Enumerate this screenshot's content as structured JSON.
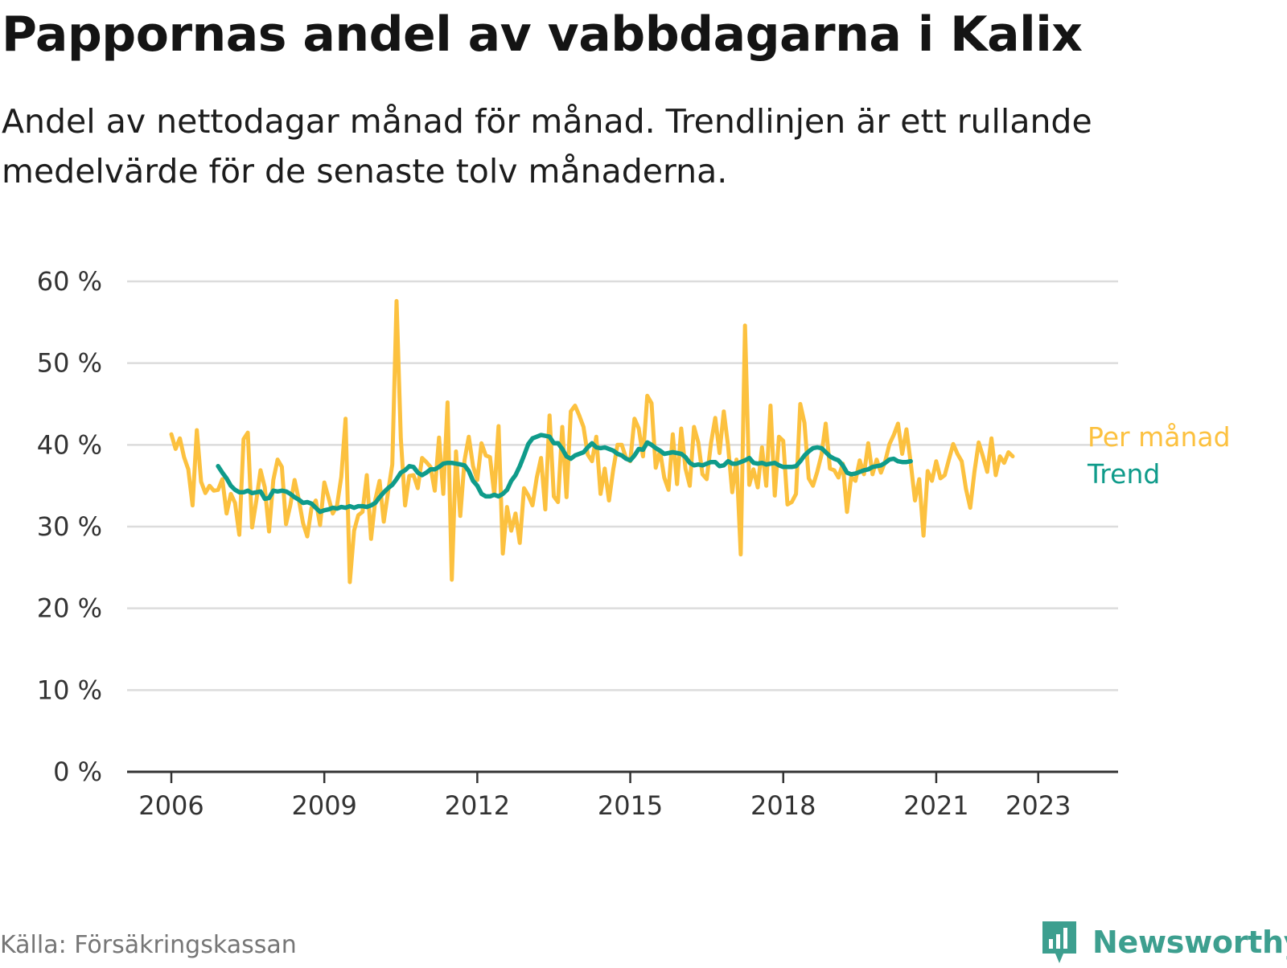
{
  "title": "Pappornas andel av vabbdagarna i Kalix",
  "subtitle": "Andel av nettodagar månad för månad. Trendlinjen är ett rullande medelvärde för de senaste tolv månaderna.",
  "source": "Källa: Försäkringskassan",
  "brand": "Newsworthy",
  "colors": {
    "monthly": "#fcc13f",
    "trend": "#0f9b8a",
    "grid": "#dcdcdc",
    "axis": "#333333",
    "brand": "#3d9f8f"
  },
  "chart_data": {
    "type": "line",
    "title": "Pappornas andel av vabbdagarna i Kalix",
    "xlabel": "",
    "ylabel": "",
    "ylim": [
      0,
      60
    ],
    "yticks": [
      0,
      10,
      20,
      30,
      40,
      50,
      60
    ],
    "ytick_labels": [
      "0 %",
      "10 %",
      "20 %",
      "30 %",
      "40 %",
      "50 %",
      "60 %"
    ],
    "xlim": [
      2006,
      2023.58
    ],
    "xticks": [
      2006,
      2009,
      2012,
      2015,
      2018,
      2021,
      2023
    ],
    "xtick_labels": [
      "2006",
      "2009",
      "2012",
      "2015",
      "2018",
      "2021",
      "2023"
    ],
    "grid": true,
    "legend": "end-of-line labels (right)",
    "series": [
      {
        "name": "Per månad",
        "color": "#fcc13f",
        "x_start": 2006.0,
        "x_step": 0.08333,
        "values": [
          41.3,
          39.5,
          40.8,
          38.5,
          37.0,
          32.6,
          41.8,
          35.5,
          34.1,
          35.0,
          34.4,
          34.5,
          35.8,
          31.6,
          34.0,
          32.9,
          29.0,
          40.7,
          41.5,
          29.9,
          33.2,
          36.9,
          34.8,
          29.4,
          35.7,
          38.2,
          37.3,
          30.3,
          32.6,
          35.7,
          33.3,
          30.4,
          28.8,
          32.3,
          33.2,
          30.2,
          35.4,
          33.5,
          31.6,
          32.6,
          36.1,
          43.2,
          23.2,
          29.5,
          31.4,
          31.8,
          36.3,
          28.5,
          33.3,
          35.6,
          30.6,
          34.2,
          37.6,
          57.6,
          40.8,
          32.6,
          36.2,
          36.3,
          34.7,
          38.4,
          37.9,
          37.3,
          34.4,
          40.9,
          34.0,
          45.2,
          23.5,
          39.2,
          31.3,
          38.1,
          41.0,
          37.4,
          35.7,
          40.2,
          38.7,
          38.5,
          33.9,
          42.3,
          26.7,
          32.4,
          29.5,
          31.6,
          28.0,
          34.7,
          33.8,
          32.6,
          36.0,
          38.4,
          32.1,
          43.6,
          33.7,
          33.0,
          42.2,
          33.6,
          44.1,
          44.8,
          43.6,
          42.2,
          38.8,
          38.0,
          41.0,
          34.0,
          37.1,
          33.2,
          37.0,
          40.0,
          40.0,
          38.4,
          38.0,
          43.2,
          42.0,
          38.6,
          46.0,
          45.1,
          37.2,
          39.3,
          36.0,
          34.5,
          41.3,
          35.2,
          42.0,
          37.1,
          35.0,
          42.2,
          40.3,
          36.4,
          35.8,
          40.2,
          43.3,
          39.0,
          44.1,
          40.0,
          34.2,
          38.2,
          26.6,
          54.6,
          35.1,
          37.0,
          34.8,
          39.7,
          35.0,
          44.8,
          33.8,
          41.0,
          40.5,
          32.7,
          33.0,
          34.0,
          45.0,
          42.7,
          35.9,
          35.0,
          36.7,
          38.8,
          42.6,
          37.1,
          36.9,
          36.0,
          37.7,
          31.8,
          36.1,
          35.6,
          38.1,
          36.4,
          40.2,
          36.4,
          38.2,
          36.6,
          38.0,
          40.1,
          41.2,
          42.6,
          38.9,
          41.9,
          37.8,
          33.2,
          35.8,
          28.9,
          36.8,
          35.6,
          38.0,
          35.9,
          36.3,
          38.2,
          40.1,
          38.9,
          38.0,
          34.6,
          32.3,
          36.7,
          40.3,
          38.6,
          36.7,
          40.8,
          36.3,
          38.6,
          37.8,
          39.1,
          38.6
        ]
      },
      {
        "name": "Trend",
        "color": "#0f9b8a",
        "x_start": 2006.917,
        "x_step": 0.08333,
        "values": [
          37.4,
          36.6,
          35.9,
          35.0,
          34.5,
          34.2,
          34.2,
          34.4,
          34.1,
          34.2,
          34.3,
          33.4,
          33.5,
          34.4,
          34.3,
          34.4,
          34.3,
          34.0,
          33.6,
          33.3,
          32.9,
          33.0,
          32.8,
          32.3,
          31.8,
          32.0,
          32.1,
          32.3,
          32.2,
          32.4,
          32.3,
          32.5,
          32.3,
          32.5,
          32.5,
          32.4,
          32.6,
          32.9,
          33.6,
          34.2,
          34.7,
          35.1,
          35.8,
          36.6,
          36.9,
          37.4,
          37.3,
          36.6,
          36.3,
          36.6,
          37.0,
          37.0,
          37.3,
          37.7,
          37.8,
          37.8,
          37.7,
          37.6,
          37.5,
          36.8,
          35.6,
          35.0,
          34.0,
          33.7,
          33.7,
          33.9,
          33.7,
          34.0,
          34.5,
          35.6,
          36.3,
          37.4,
          38.7,
          40.1,
          40.8,
          41.0,
          41.2,
          41.1,
          41.0,
          40.2,
          40.2,
          39.5,
          38.6,
          38.3,
          38.7,
          38.9,
          39.1,
          39.7,
          40.2,
          39.7,
          39.6,
          39.7,
          39.5,
          39.3,
          38.9,
          38.7,
          38.3,
          38.1,
          38.7,
          39.5,
          39.4,
          40.3,
          40.0,
          39.6,
          39.3,
          38.9,
          39.0,
          39.1,
          39.0,
          38.9,
          38.5,
          37.8,
          37.5,
          37.6,
          37.5,
          37.7,
          37.9,
          37.9,
          37.4,
          37.5,
          38.0,
          37.7,
          37.7,
          37.9,
          38.1,
          38.4,
          37.8,
          37.7,
          37.8,
          37.6,
          37.7,
          37.8,
          37.5,
          37.3,
          37.3,
          37.3,
          37.4,
          38.0,
          38.7,
          39.2,
          39.6,
          39.7,
          39.6,
          39.1,
          38.6,
          38.3,
          38.1,
          37.5,
          36.6,
          36.4,
          36.5,
          36.7,
          36.9,
          37.0,
          37.3,
          37.4,
          37.5,
          37.8,
          38.2,
          38.3,
          38.0,
          37.9,
          37.9,
          38.0
        ]
      }
    ]
  }
}
